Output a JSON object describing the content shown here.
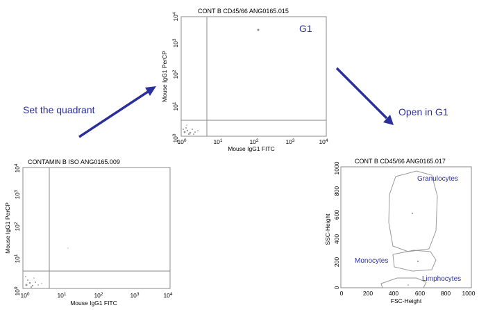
{
  "captions": {
    "set_quadrant": "Set the quadrant",
    "open_in_g1": "Open in G1",
    "g1": "G1"
  },
  "plots": {
    "iso": {
      "title": "CONTAMIN B ISO ANG0165.009",
      "xlabel": "Mouse IgG1 FITC",
      "ylabel": "Mouse IgG1 PerCP",
      "xticks": [
        "10",
        "10",
        "10",
        "10",
        "10"
      ],
      "xexp": [
        "0",
        "1",
        "2",
        "3",
        "4"
      ],
      "yticks": [
        "10",
        "10",
        "10",
        "10",
        "10"
      ],
      "yexp": [
        "0",
        "1",
        "2",
        "3",
        "4"
      ]
    },
    "cd45": {
      "title": "CONT B CD45/66 ANG0165.015",
      "xlabel": "Mouse IgG1 FITC",
      "ylabel": "Mouse IgG1 PerCP",
      "xticks": [
        "10",
        "10",
        "10",
        "10",
        "10"
      ],
      "xexp": [
        "0",
        "1",
        "2",
        "3",
        "4"
      ],
      "yticks": [
        "10",
        "10",
        "10",
        "10",
        "10"
      ],
      "yexp": [
        "0",
        "1",
        "2",
        "3",
        "4"
      ]
    },
    "scatter": {
      "title": "CONT B CD45/66 ANG0165.017",
      "xlabel": "FSC-Height",
      "ylabel": "SSC-Height",
      "xticks": [
        "0",
        "200",
        "400",
        "600",
        "800",
        "1000"
      ],
      "yticks": [
        "0",
        "200",
        "400",
        "600",
        "800",
        "1000"
      ],
      "gates": [
        "Granulocytes",
        "Monocytes",
        "Limphocytes"
      ]
    }
  },
  "colors": {
    "accent": "#2b2f9e",
    "frame": "#888888"
  }
}
